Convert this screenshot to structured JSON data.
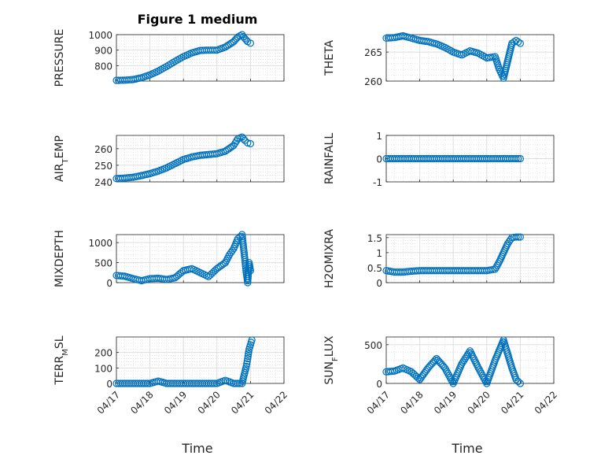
{
  "figure": {
    "title": "Figure 1 medium",
    "xlabel": "Time"
  },
  "chart_data": [
    {
      "type": "scatter",
      "ylabel": "PRESSURE",
      "xlim": [
        "04/17",
        "04/22"
      ],
      "ylim": [
        700,
        1000
      ],
      "yticks": [
        800,
        900,
        1000
      ],
      "grid": true,
      "series": [
        {
          "points": [
            [
              "04/17 00:00",
              705
            ],
            [
              "04/17 06:00",
              706
            ],
            [
              "04/17 12:00",
              710
            ],
            [
              "04/17 18:00",
              722
            ],
            [
              "04/18 00:00",
              740
            ],
            [
              "04/18 06:00",
              765
            ],
            [
              "04/18 12:00",
              795
            ],
            [
              "04/18 18:00",
              828
            ],
            [
              "04/19 00:00",
              858
            ],
            [
              "04/19 06:00",
              882
            ],
            [
              "04/19 12:00",
              898
            ],
            [
              "04/19 18:00",
              900
            ],
            [
              "04/20 00:00",
              900
            ],
            [
              "04/20 06:00",
              920
            ],
            [
              "04/20 12:00",
              955
            ],
            [
              "04/20 15:00",
              985
            ],
            [
              "04/20 18:00",
              1000
            ],
            [
              "04/20 20:00",
              975
            ],
            [
              "04/20 22:00",
              955
            ],
            [
              "04/21 00:00",
              945
            ]
          ]
        }
      ]
    },
    {
      "type": "scatter",
      "ylabel": "THETA",
      "xlim": [
        "04/17",
        "04/22"
      ],
      "ylim": [
        260,
        268
      ],
      "yticks": [
        260,
        265
      ],
      "grid": true,
      "series": [
        {
          "points": [
            [
              "04/17 00:00",
              267.4
            ],
            [
              "04/17 06:00",
              267.5
            ],
            [
              "04/17 12:00",
              267.8
            ],
            [
              "04/17 18:00",
              267.4
            ],
            [
              "04/18 00:00",
              267.0
            ],
            [
              "04/18 06:00",
              266.8
            ],
            [
              "04/18 12:00",
              266.4
            ],
            [
              "04/18 18:00",
              265.8
            ],
            [
              "04/19 00:00",
              265.0
            ],
            [
              "04/19 06:00",
              264.5
            ],
            [
              "04/19 12:00",
              265.2
            ],
            [
              "04/19 18:00",
              264.8
            ],
            [
              "04/20 00:00",
              264.0
            ],
            [
              "04/20 06:00",
              264.2
            ],
            [
              "04/20 09:00",
              262.0
            ],
            [
              "04/20 12:00",
              260.5
            ],
            [
              "04/20 15:00",
              263.5
            ],
            [
              "04/20 18:00",
              266.5
            ],
            [
              "04/20 21:00",
              267.0
            ],
            [
              "04/21 00:00",
              266.5
            ]
          ]
        }
      ]
    },
    {
      "type": "scatter",
      "ylabel": "AIR",
      "ylabel_subscript": "T",
      "ylabel_rest": "EMP",
      "xlim": [
        "04/17",
        "04/22"
      ],
      "ylim": [
        240,
        268
      ],
      "yticks": [
        240,
        250,
        260
      ],
      "grid": true,
      "series": [
        {
          "points": [
            [
              "04/17 00:00",
              242.0
            ],
            [
              "04/17 06:00",
              242.3
            ],
            [
              "04/17 12:00",
              242.8
            ],
            [
              "04/17 18:00",
              243.8
            ],
            [
              "04/18 00:00",
              245.0
            ],
            [
              "04/18 06:00",
              246.5
            ],
            [
              "04/18 12:00",
              248.5
            ],
            [
              "04/18 18:00",
              251.0
            ],
            [
              "04/19 00:00",
              253.5
            ],
            [
              "04/19 06:00",
              255.0
            ],
            [
              "04/19 12:00",
              256.0
            ],
            [
              "04/19 18:00",
              256.5
            ],
            [
              "04/20 00:00",
              257.0
            ],
            [
              "04/20 06:00",
              258.5
            ],
            [
              "04/20 12:00",
              262.0
            ],
            [
              "04/20 15:00",
              266.0
            ],
            [
              "04/20 18:00",
              267.0
            ],
            [
              "04/20 20:00",
              265.0
            ],
            [
              "04/20 22:00",
              263.5
            ],
            [
              "04/21 00:00",
              263.0
            ]
          ]
        }
      ]
    },
    {
      "type": "scatter",
      "ylabel": "RAINFALL",
      "xlim": [
        "04/17",
        "04/22"
      ],
      "ylim": [
        -1,
        1
      ],
      "yticks": [
        -1,
        0,
        1
      ],
      "grid": true,
      "series": [
        {
          "points": [
            [
              "04/17 00:00",
              0
            ],
            [
              "04/17 06:00",
              0
            ],
            [
              "04/17 12:00",
              0
            ],
            [
              "04/17 18:00",
              0
            ],
            [
              "04/18 00:00",
              0
            ],
            [
              "04/18 06:00",
              0
            ],
            [
              "04/18 12:00",
              0
            ],
            [
              "04/18 18:00",
              0
            ],
            [
              "04/19 00:00",
              0
            ],
            [
              "04/19 06:00",
              0
            ],
            [
              "04/19 12:00",
              0
            ],
            [
              "04/19 18:00",
              0
            ],
            [
              "04/20 00:00",
              0
            ],
            [
              "04/20 06:00",
              0
            ],
            [
              "04/20 12:00",
              0
            ],
            [
              "04/20 18:00",
              0
            ],
            [
              "04/21 00:00",
              0
            ]
          ]
        }
      ]
    },
    {
      "type": "scatter",
      "ylabel": "MIXDEPTH",
      "xlim": [
        "04/17",
        "04/22"
      ],
      "ylim": [
        0,
        1200
      ],
      "yticks": [
        0,
        500,
        1000
      ],
      "grid": true,
      "series": [
        {
          "points": [
            [
              "04/17 00:00",
              180
            ],
            [
              "04/17 06:00",
              160
            ],
            [
              "04/17 12:00",
              100
            ],
            [
              "04/17 18:00",
              50
            ],
            [
              "04/18 00:00",
              100
            ],
            [
              "04/18 06:00",
              110
            ],
            [
              "04/18 12:00",
              80
            ],
            [
              "04/18 18:00",
              120
            ],
            [
              "04/19 00:00",
              300
            ],
            [
              "04/19 06:00",
              350
            ],
            [
              "04/19 12:00",
              250
            ],
            [
              "04/19 18:00",
              150
            ],
            [
              "04/20 00:00",
              350
            ],
            [
              "04/20 06:00",
              500
            ],
            [
              "04/20 09:00",
              700
            ],
            [
              "04/20 12:00",
              850
            ],
            [
              "04/20 15:00",
              1100
            ],
            [
              "04/20 18:00",
              1200
            ],
            [
              "04/20 20:00",
              580
            ],
            [
              "04/20 21:00",
              250
            ],
            [
              "04/20 22:00",
              0
            ],
            [
              "04/20 23:00",
              500
            ],
            [
              "04/21 00:00",
              300
            ]
          ]
        }
      ]
    },
    {
      "type": "scatter",
      "ylabel": "H2OMIXRA",
      "xlim": [
        "04/17",
        "04/22"
      ],
      "ylim": [
        0,
        1.6
      ],
      "yticks": [
        0,
        0.5,
        1,
        1.5
      ],
      "grid": true,
      "series": [
        {
          "points": [
            [
              "04/17 00:00",
              0.4
            ],
            [
              "04/17 06:00",
              0.35
            ],
            [
              "04/17 12:00",
              0.35
            ],
            [
              "04/17 18:00",
              0.38
            ],
            [
              "04/18 00:00",
              0.4
            ],
            [
              "04/18 06:00",
              0.4
            ],
            [
              "04/18 12:00",
              0.4
            ],
            [
              "04/18 18:00",
              0.4
            ],
            [
              "04/19 00:00",
              0.4
            ],
            [
              "04/19 06:00",
              0.4
            ],
            [
              "04/19 12:00",
              0.4
            ],
            [
              "04/19 18:00",
              0.4
            ],
            [
              "04/20 00:00",
              0.4
            ],
            [
              "04/20 06:00",
              0.45
            ],
            [
              "04/20 09:00",
              0.7
            ],
            [
              "04/20 12:00",
              1.0
            ],
            [
              "04/20 15:00",
              1.3
            ],
            [
              "04/20 18:00",
              1.5
            ],
            [
              "04/20 21:00",
              1.52
            ],
            [
              "04/21 00:00",
              1.52
            ]
          ]
        }
      ]
    },
    {
      "type": "scatter",
      "ylabel": "TERR",
      "ylabel_subscript": "M",
      "ylabel_rest": "SL",
      "xlim": [
        "04/17",
        "04/22"
      ],
      "ylim": [
        0,
        300
      ],
      "yticks": [
        0,
        100,
        200
      ],
      "grid": true,
      "series": [
        {
          "points": [
            [
              "04/17 00:00",
              0
            ],
            [
              "04/17 06:00",
              0
            ],
            [
              "04/17 12:00",
              0
            ],
            [
              "04/17 18:00",
              0
            ],
            [
              "04/18 00:00",
              0
            ],
            [
              "04/18 06:00",
              15
            ],
            [
              "04/18 12:00",
              0
            ],
            [
              "04/18 18:00",
              0
            ],
            [
              "04/19 00:00",
              0
            ],
            [
              "04/19 06:00",
              0
            ],
            [
              "04/19 12:00",
              0
            ],
            [
              "04/19 18:00",
              0
            ],
            [
              "04/20 00:00",
              0
            ],
            [
              "04/20 06:00",
              20
            ],
            [
              "04/20 12:00",
              0
            ],
            [
              "04/20 18:00",
              0
            ],
            [
              "04/20 21:00",
              110
            ],
            [
              "04/20 22:00",
              160
            ],
            [
              "04/20 23:00",
              220
            ],
            [
              "04/21 00:00",
              250
            ],
            [
              "04/21 01:00",
              280
            ]
          ]
        }
      ]
    },
    {
      "type": "scatter",
      "ylabel": "SUN",
      "ylabel_subscript": "F",
      "ylabel_rest": "LUX",
      "xlim": [
        "04/17",
        "04/22"
      ],
      "ylim": [
        0,
        600
      ],
      "yticks": [
        0,
        500
      ],
      "grid": true,
      "series": [
        {
          "points": [
            [
              "04/17 00:00",
              150
            ],
            [
              "04/17 06:00",
              160
            ],
            [
              "04/17 12:00",
              200
            ],
            [
              "04/17 18:00",
              150
            ],
            [
              "04/18 00:00",
              50
            ],
            [
              "04/18 06:00",
              200
            ],
            [
              "04/18 12:00",
              320
            ],
            [
              "04/18 18:00",
              200
            ],
            [
              "04/19 00:00",
              0
            ],
            [
              "04/19 06:00",
              250
            ],
            [
              "04/19 12:00",
              420
            ],
            [
              "04/19 18:00",
              200
            ],
            [
              "04/20 00:00",
              0
            ],
            [
              "04/20 06:00",
              300
            ],
            [
              "04/20 12:00",
              560
            ],
            [
              "04/20 18:00",
              200
            ],
            [
              "04/20 21:00",
              50
            ],
            [
              "04/21 00:00",
              0
            ]
          ]
        }
      ]
    }
  ]
}
